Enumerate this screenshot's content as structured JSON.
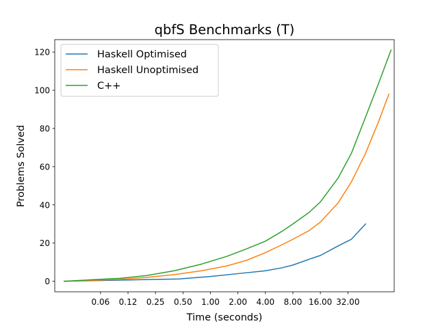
{
  "chart_data": {
    "type": "line",
    "title": "qbfS Benchmarks (T)",
    "xlabel": "Time (seconds)",
    "ylabel": "Problems Solved",
    "x_scale": "log2",
    "xlim": [
      0.0197,
      103
    ],
    "ylim": [
      -5.5,
      126.5
    ],
    "x_ticks": [
      0.0625,
      0.125,
      0.25,
      0.5,
      1,
      2,
      4,
      8,
      16,
      32
    ],
    "x_tick_labels": [
      "0.06",
      "0.12",
      "0.25",
      "0.50",
      "1.00",
      "2.00",
      "4.00",
      "8.00",
      "16.00",
      "32.00"
    ],
    "y_ticks": [
      0,
      20,
      40,
      60,
      80,
      100,
      120
    ],
    "y_tick_labels": [
      "0",
      "20",
      "40",
      "60",
      "80",
      "100",
      "120"
    ],
    "grid": false,
    "legend_position": "top-left",
    "series": [
      {
        "name": "Haskell Optimised",
        "color": "#1f77b4",
        "x": [
          0.025,
          0.05,
          0.1,
          0.2,
          0.45,
          1.0,
          2.0,
          4.0,
          6.0,
          8.0,
          12.0,
          16.0,
          25.0,
          35.0,
          50.0
        ],
        "y": [
          0,
          0.3,
          0.6,
          0.9,
          1.2,
          2.5,
          4.0,
          5.5,
          7.0,
          8.5,
          11.5,
          13.5,
          18.5,
          22.0,
          30.0
        ]
      },
      {
        "name": "Haskell Unoptimised",
        "color": "#ff7f0e",
        "x": [
          0.025,
          0.05,
          0.1,
          0.2,
          0.4,
          0.8,
          1.5,
          2.5,
          4.0,
          6.0,
          8.0,
          12.0,
          16.0,
          25.0,
          35.0,
          50.0,
          70.0,
          90.0
        ],
        "y": [
          0,
          0.5,
          1.0,
          2.0,
          3.5,
          5.5,
          8.0,
          11.0,
          15.0,
          19.0,
          22.0,
          26.5,
          31.0,
          41.0,
          52.0,
          67.0,
          84.0,
          98.0
        ]
      },
      {
        "name": "C++",
        "color": "#2ca02c",
        "x": [
          0.025,
          0.05,
          0.1,
          0.2,
          0.4,
          0.8,
          1.5,
          2.5,
          4.0,
          6.0,
          8.0,
          12.0,
          16.0,
          25.0,
          35.0,
          50.0,
          70.0,
          95.0
        ],
        "y": [
          0,
          0.8,
          1.5,
          3.0,
          5.5,
          9.0,
          13.0,
          17.0,
          21.0,
          26.0,
          30.0,
          36.0,
          41.5,
          54.0,
          67.0,
          86.0,
          104.0,
          121.0
        ]
      }
    ]
  }
}
